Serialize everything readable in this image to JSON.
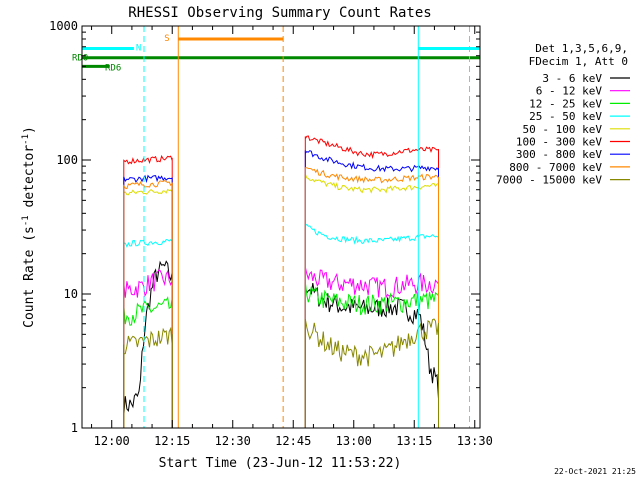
{
  "chart_data": {
    "type": "line",
    "title": "RHESSI Observing Summary Count Rates",
    "xlabel": "Start Time (23-Jun-12 11:53:22)",
    "ylabel_main": "Count Rate (s",
    "ylabel_sup1": "-1",
    "ylabel_mid": " detector",
    "ylabel_sup2": "-1",
    "ylabel_end": ")",
    "y_scale": "log",
    "ylim": [
      1,
      1000
    ],
    "xlim_minutes": [
      -7.37,
      91.3
    ],
    "x_tick_labels": [
      "12:00",
      "12:15",
      "12:30",
      "12:45",
      "13:00",
      "13:15",
      "13:30"
    ],
    "x_tick_minutes": [
      0,
      15,
      30,
      45,
      60,
      75,
      90
    ],
    "y_tick_labels": [
      "1",
      "10",
      "100",
      "1000"
    ],
    "y_tick_values": [
      1,
      10,
      100,
      1000
    ],
    "legend_header": [
      "Det 1,3,5,6,9,",
      "FDecim 1, Att 0"
    ],
    "footer_date": "22-Oct-2021 21:25",
    "grid": false,
    "legend_position": "right",
    "data_intervals_minutes": [
      [
        3,
        15
      ],
      [
        48,
        81
      ]
    ],
    "series": [
      {
        "name": "3 - 6 keV",
        "color": "#000000",
        "seg1": [
          1.5,
          1.5,
          1.8,
          8,
          14,
          16,
          13
        ],
        "seg2": [
          12,
          10,
          9,
          8.5,
          8,
          8,
          7.8,
          7.8,
          8,
          8,
          8,
          7.5,
          7,
          3,
          2
        ]
      },
      {
        "name": "6 - 12 keV",
        "color": "#ff00ff",
        "seg1": [
          10.5,
          11,
          11.5,
          12.5,
          13,
          13
        ],
        "seg2": [
          14,
          13,
          12.5,
          12,
          12,
          11.8,
          11.5,
          11.3,
          11.5,
          11.8,
          12,
          12,
          12
        ]
      },
      {
        "name": "12 - 25 keV",
        "color": "#00ee00",
        "seg1": [
          7,
          7.2,
          7.5,
          7.8,
          8,
          8
        ],
        "seg2": [
          10.5,
          9.5,
          9,
          8.8,
          8.6,
          8.5,
          8.5,
          8.5,
          8.6,
          8.8,
          9,
          9,
          9
        ]
      },
      {
        "name": "25 - 50 keV",
        "color": "#00ffff",
        "seg1": [
          23,
          24,
          24,
          24.5,
          24.5,
          25
        ],
        "seg2": [
          32,
          29,
          27,
          26,
          25.5,
          25,
          25,
          25,
          25.5,
          26,
          26.5,
          27,
          27
        ]
      },
      {
        "name": "50 - 100 keV",
        "color": "#dddd00",
        "seg1": [
          56,
          57,
          58,
          58,
          59,
          60
        ],
        "seg2": [
          76,
          70,
          66,
          63,
          61,
          60,
          60,
          60,
          61,
          62,
          63,
          64,
          64
        ]
      },
      {
        "name": "100 - 300 keV",
        "color": "#ff0000",
        "seg1": [
          98,
          99,
          100,
          101,
          102,
          104
        ],
        "seg2": [
          150,
          140,
          132,
          125,
          118,
          112,
          110,
          111,
          114,
          117,
          119,
          119,
          118
        ]
      },
      {
        "name": "300 - 800 keV",
        "color": "#0000ff",
        "seg1": [
          72,
          72,
          73,
          73,
          74,
          74
        ],
        "seg2": [
          118,
          108,
          101,
          96,
          92,
          89,
          87,
          86,
          86,
          86,
          87,
          88,
          87
        ]
      },
      {
        "name": "800 - 7000 keV",
        "color": "#ff8800",
        "seg1": [
          64,
          65,
          66,
          66,
          67,
          68
        ],
        "seg2": [
          88,
          82,
          78,
          75,
          73,
          72,
          71,
          71,
          72,
          73,
          74,
          75,
          75
        ]
      },
      {
        "name": "7000 - 15000 keV",
        "color": "#888800",
        "seg1": [
          4.2,
          4.2,
          4.4,
          4.6,
          4.8,
          5
        ],
        "seg2": [
          6,
          5,
          4.2,
          3.8,
          3.6,
          3.5,
          3.5,
          3.6,
          4,
          4.6,
          5.2,
          5.5,
          5.6
        ]
      }
    ],
    "status_bars": [
      {
        "label": "RD0",
        "color": "#008800",
        "y": 580,
        "x_start_minutes": -7.37,
        "x_end_minutes": 91.3
      },
      {
        "label": "RD6",
        "color": "#008800",
        "y": 500,
        "x_start_minutes": -7.37,
        "x_end_minutes": -0.5
      },
      {
        "label": "N",
        "color": "#00ffff",
        "y": 680,
        "x_start_minutes": -7.37,
        "x_end_minutes": 5.5
      },
      {
        "label": "",
        "color": "#00ffff",
        "y": 680,
        "x_start_minutes": 76,
        "x_end_minutes": 91.3
      },
      {
        "label": "S",
        "color": "#ff8800",
        "y": 800,
        "x_start_minutes": 16.5,
        "x_end_minutes": 42.5
      }
    ],
    "vertical_markers": [
      {
        "x_minutes": 8,
        "color": "#00ffff",
        "dashed": true
      },
      {
        "x_minutes": 16.5,
        "color": "#ff8800",
        "dashed": false
      },
      {
        "x_minutes": 42.5,
        "color": "#ff8800",
        "dashed": true
      },
      {
        "x_minutes": 76,
        "color": "#00ffff",
        "dashed": false
      },
      {
        "x_minutes": 88.7,
        "color": "#00ffff",
        "dashed": true
      }
    ]
  }
}
